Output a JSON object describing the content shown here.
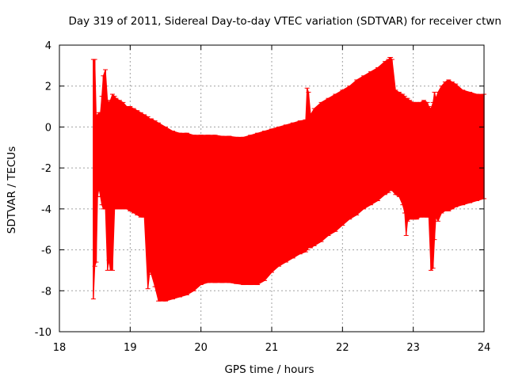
{
  "chart_data": {
    "type": "line",
    "title": "Day 319 of 2011, Sidereal Day-to-day VTEC variation (SDTVAR) for receiver ctwn",
    "xlabel": "GPS time / hours",
    "ylabel": "SDTVAR / TECUs",
    "xlim": [
      18,
      24
    ],
    "ylim": [
      -10,
      4
    ],
    "x_ticks": [
      "18",
      "19",
      "20",
      "21",
      "22",
      "23",
      "24"
    ],
    "y_ticks": [
      "4",
      "2",
      "0",
      "-2",
      "-4",
      "-6",
      "-8",
      "-10"
    ],
    "grid": true,
    "color": "#ff0000",
    "series": [
      {
        "name": "SDTVAR error band",
        "x": [
          18.48,
          18.5,
          18.52,
          18.54,
          18.56,
          18.58,
          18.6,
          18.62,
          18.65,
          18.68,
          18.7,
          18.72,
          18.75,
          18.78,
          18.8,
          18.85,
          18.9,
          18.95,
          19.0,
          19.05,
          19.1,
          19.15,
          19.2,
          19.25,
          19.28,
          19.3,
          19.35,
          19.4,
          19.5,
          19.6,
          19.7,
          19.8,
          19.9,
          20.0,
          20.1,
          20.2,
          20.3,
          20.4,
          20.5,
          20.6,
          20.7,
          20.8,
          20.9,
          21.0,
          21.1,
          21.2,
          21.3,
          21.4,
          21.48,
          21.5,
          21.52,
          21.55,
          21.6,
          21.7,
          21.8,
          21.9,
          22.0,
          22.1,
          22.2,
          22.3,
          22.4,
          22.5,
          22.6,
          22.65,
          22.67,
          22.68,
          22.7,
          22.75,
          22.8,
          22.85,
          22.88,
          22.9,
          22.92,
          22.95,
          23.0,
          23.05,
          23.1,
          23.15,
          23.2,
          23.22,
          23.25,
          23.28,
          23.3,
          23.32,
          23.35,
          23.4,
          23.45,
          23.5,
          23.55,
          23.6,
          23.7,
          23.8,
          23.9,
          24.0
        ],
        "upper": [
          3.3,
          3.3,
          0.5,
          0.6,
          0.7,
          0.7,
          1.5,
          2.5,
          2.8,
          1.3,
          1.2,
          1.3,
          1.6,
          1.5,
          1.4,
          1.3,
          1.2,
          1.0,
          1.0,
          0.9,
          0.8,
          0.7,
          0.6,
          0.5,
          0.4,
          0.4,
          0.3,
          0.2,
          0.0,
          -0.2,
          -0.3,
          -0.3,
          -0.4,
          -0.4,
          -0.4,
          -0.4,
          -0.45,
          -0.45,
          -0.5,
          -0.5,
          -0.4,
          -0.3,
          -0.2,
          -0.1,
          0.0,
          0.1,
          0.2,
          0.3,
          0.35,
          1.9,
          1.7,
          0.6,
          0.9,
          1.2,
          1.4,
          1.6,
          1.8,
          2.0,
          2.3,
          2.5,
          2.7,
          2.9,
          3.2,
          3.3,
          3.4,
          3.4,
          3.3,
          1.8,
          1.7,
          1.6,
          1.5,
          1.4,
          1.4,
          1.3,
          1.2,
          1.2,
          1.2,
          1.3,
          1.2,
          1.0,
          0.9,
          1.2,
          1.7,
          1.4,
          1.7,
          2.0,
          2.2,
          2.3,
          2.2,
          2.1,
          1.8,
          1.7,
          1.6,
          1.6
        ],
        "lower": [
          -8.4,
          -6.8,
          -6.6,
          -3.4,
          -3.0,
          -3.4,
          -3.8,
          -4.0,
          -4.0,
          -7.0,
          -6.5,
          -7.0,
          -7.0,
          -4.0,
          -4.0,
          -4.0,
          -4.0,
          -4.0,
          -4.1,
          -4.2,
          -4.3,
          -4.4,
          -4.4,
          -7.9,
          -7.0,
          -7.2,
          -7.8,
          -8.5,
          -8.5,
          -8.4,
          -8.3,
          -8.2,
          -8.0,
          -7.7,
          -7.6,
          -7.6,
          -7.6,
          -7.6,
          -7.65,
          -7.7,
          -7.7,
          -7.7,
          -7.5,
          -7.1,
          -6.8,
          -6.6,
          -6.4,
          -6.2,
          -6.1,
          -6.0,
          -5.9,
          -5.9,
          -5.8,
          -5.6,
          -5.3,
          -5.1,
          -4.8,
          -4.5,
          -4.3,
          -4.0,
          -3.8,
          -3.6,
          -3.3,
          -3.2,
          -3.1,
          -3.1,
          -3.1,
          -3.3,
          -3.4,
          -3.8,
          -4.2,
          -5.3,
          -4.6,
          -4.5,
          -4.5,
          -4.5,
          -4.4,
          -4.4,
          -4.4,
          -4.4,
          -7.0,
          -6.9,
          -5.5,
          -4.4,
          -4.6,
          -4.2,
          -4.1,
          -4.1,
          -4.0,
          -3.9,
          -3.8,
          -3.7,
          -3.6,
          -3.5
        ]
      }
    ]
  }
}
